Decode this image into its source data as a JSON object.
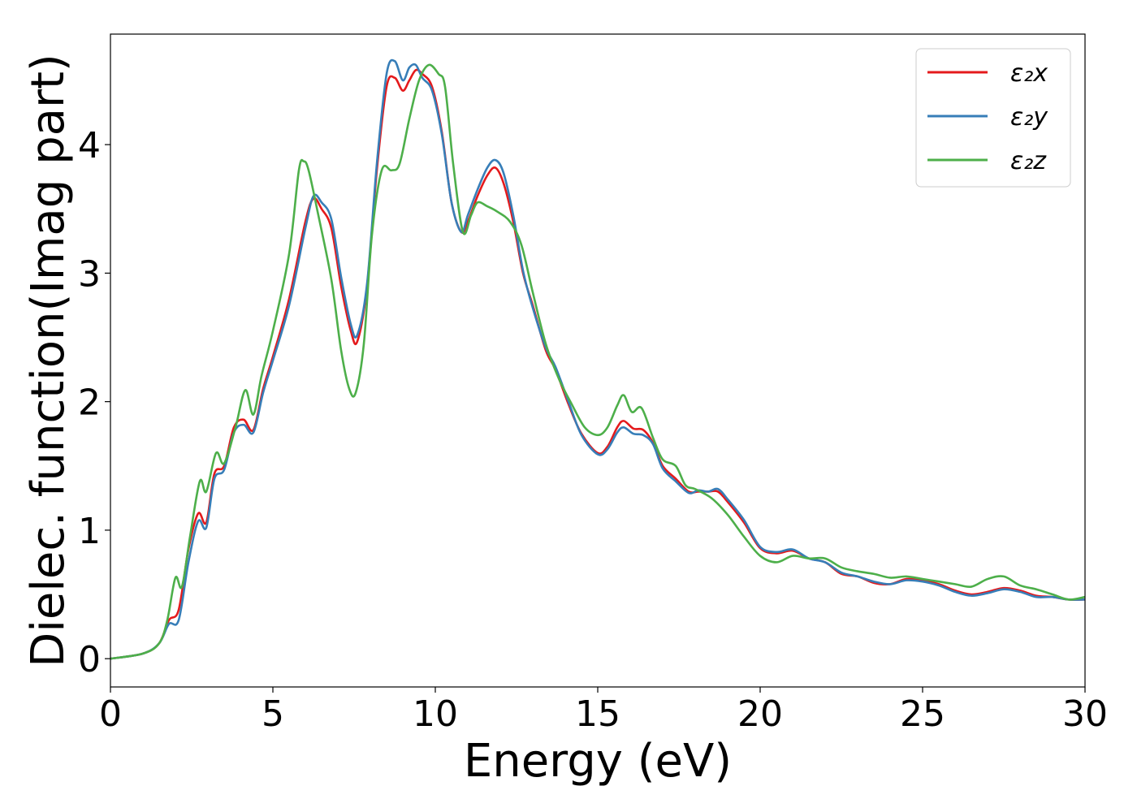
{
  "chart_data": {
    "type": "line",
    "xlabel": "Energy (eV)",
    "ylabel": "Dielec. function(Imag part)",
    "xlim": [
      0,
      30
    ],
    "ylim": [
      -0.22,
      4.86
    ],
    "xticks": [
      0,
      5,
      10,
      15,
      20,
      25,
      30
    ],
    "yticks": [
      0,
      1,
      2,
      3,
      4
    ],
    "grid": false,
    "legend_position": "top-right",
    "series": [
      {
        "name": "ε₂x",
        "color": "#e41a1c",
        "x": [
          0,
          1,
          1.5,
          1.8,
          2.1,
          2.4,
          2.7,
          2.95,
          3.2,
          3.5,
          3.8,
          4.1,
          4.4,
          4.7,
          5.0,
          5.5,
          6.0,
          6.25,
          6.5,
          6.8,
          7.1,
          7.4,
          7.6,
          7.9,
          8.2,
          8.5,
          8.75,
          9.0,
          9.2,
          9.4,
          9.6,
          9.9,
          10.2,
          10.5,
          10.8,
          11.0,
          11.3,
          11.6,
          11.85,
          12.1,
          12.4,
          12.7,
          13.0,
          13.4,
          13.7,
          14.1,
          14.5,
          15.0,
          15.3,
          15.6,
          15.8,
          16.1,
          16.4,
          16.7,
          17.0,
          17.4,
          17.8,
          18.1,
          18.4,
          18.7,
          19.0,
          19.5,
          20.0,
          20.5,
          21.0,
          21.5,
          22.0,
          22.5,
          23.0,
          23.5,
          24.0,
          24.5,
          25.0,
          25.5,
          26.0,
          26.5,
          27.0,
          27.5,
          28.0,
          28.5,
          29.0,
          29.5,
          30.0
        ],
        "values": [
          0,
          0.04,
          0.12,
          0.3,
          0.38,
          0.85,
          1.13,
          1.06,
          1.44,
          1.5,
          1.8,
          1.86,
          1.78,
          2.1,
          2.35,
          2.8,
          3.4,
          3.58,
          3.5,
          3.35,
          2.9,
          2.55,
          2.47,
          2.9,
          3.8,
          4.45,
          4.52,
          4.42,
          4.5,
          4.58,
          4.55,
          4.45,
          4.1,
          3.55,
          3.32,
          3.4,
          3.6,
          3.76,
          3.82,
          3.7,
          3.4,
          3.0,
          2.75,
          2.4,
          2.25,
          1.98,
          1.75,
          1.6,
          1.65,
          1.8,
          1.85,
          1.79,
          1.78,
          1.68,
          1.5,
          1.4,
          1.3,
          1.3,
          1.3,
          1.3,
          1.22,
          1.06,
          0.86,
          0.82,
          0.84,
          0.78,
          0.75,
          0.66,
          0.64,
          0.59,
          0.58,
          0.62,
          0.61,
          0.58,
          0.53,
          0.5,
          0.52,
          0.55,
          0.53,
          0.49,
          0.48,
          0.46,
          0.46
        ]
      },
      {
        "name": "ε₂y",
        "color": "#377eb8",
        "x": [
          0,
          1,
          1.5,
          1.8,
          2.1,
          2.4,
          2.7,
          2.95,
          3.2,
          3.5,
          3.8,
          4.1,
          4.4,
          4.7,
          5.0,
          5.5,
          6.0,
          6.25,
          6.5,
          6.8,
          7.1,
          7.4,
          7.6,
          7.9,
          8.2,
          8.5,
          8.75,
          9.0,
          9.2,
          9.4,
          9.6,
          9.9,
          10.2,
          10.5,
          10.8,
          11.0,
          11.3,
          11.6,
          11.85,
          12.1,
          12.4,
          12.7,
          13.0,
          13.4,
          13.7,
          14.1,
          14.5,
          15.0,
          15.3,
          15.6,
          15.8,
          16.1,
          16.4,
          16.7,
          17.0,
          17.4,
          17.8,
          18.1,
          18.4,
          18.7,
          19.0,
          19.5,
          20.0,
          20.5,
          21.0,
          21.5,
          22.0,
          22.5,
          23.0,
          23.5,
          24.0,
          24.5,
          25.0,
          25.5,
          26.0,
          26.5,
          27.0,
          27.5,
          28.0,
          28.5,
          29.0,
          29.5,
          30.0
        ],
        "values": [
          0,
          0.04,
          0.12,
          0.27,
          0.3,
          0.75,
          1.07,
          1.02,
          1.4,
          1.47,
          1.76,
          1.82,
          1.76,
          2.07,
          2.32,
          2.75,
          3.35,
          3.6,
          3.55,
          3.42,
          2.97,
          2.6,
          2.52,
          2.92,
          3.85,
          4.55,
          4.65,
          4.5,
          4.6,
          4.62,
          4.52,
          4.42,
          4.08,
          3.55,
          3.32,
          3.45,
          3.65,
          3.82,
          3.88,
          3.78,
          3.45,
          3.02,
          2.73,
          2.42,
          2.27,
          2.0,
          1.74,
          1.59,
          1.63,
          1.76,
          1.8,
          1.75,
          1.74,
          1.67,
          1.48,
          1.38,
          1.29,
          1.31,
          1.3,
          1.32,
          1.24,
          1.08,
          0.87,
          0.83,
          0.85,
          0.78,
          0.75,
          0.67,
          0.64,
          0.6,
          0.58,
          0.61,
          0.6,
          0.57,
          0.52,
          0.49,
          0.51,
          0.54,
          0.52,
          0.48,
          0.48,
          0.46,
          0.46
        ]
      },
      {
        "name": "ε₂z",
        "color": "#4daf4a",
        "x": [
          0,
          1,
          1.5,
          1.75,
          2.0,
          2.2,
          2.45,
          2.75,
          2.95,
          3.25,
          3.5,
          3.85,
          4.15,
          4.4,
          4.65,
          5.0,
          5.5,
          5.8,
          5.95,
          6.1,
          6.4,
          6.8,
          7.1,
          7.35,
          7.55,
          7.8,
          8.05,
          8.35,
          8.65,
          8.9,
          9.2,
          9.5,
          9.8,
          10.1,
          10.3,
          10.55,
          10.85,
          11.1,
          11.3,
          11.6,
          11.9,
          12.3,
          12.65,
          13.0,
          13.4,
          13.8,
          14.2,
          14.6,
          15.0,
          15.3,
          15.6,
          15.8,
          16.05,
          16.35,
          16.7,
          17.0,
          17.4,
          17.7,
          18.0,
          18.5,
          19.0,
          19.5,
          20.0,
          20.5,
          21.0,
          21.5,
          22.0,
          22.5,
          23.0,
          23.5,
          24.0,
          24.5,
          25.0,
          25.5,
          26.0,
          26.5,
          27.0,
          27.5,
          28.0,
          28.5,
          29.0,
          29.5,
          30.0
        ],
        "values": [
          0,
          0.04,
          0.12,
          0.3,
          0.63,
          0.56,
          0.95,
          1.38,
          1.3,
          1.6,
          1.52,
          1.8,
          2.09,
          1.9,
          2.2,
          2.55,
          3.15,
          3.8,
          3.87,
          3.8,
          3.45,
          2.95,
          2.4,
          2.1,
          2.07,
          2.45,
          3.3,
          3.8,
          3.8,
          3.85,
          4.2,
          4.5,
          4.62,
          4.55,
          4.45,
          3.85,
          3.32,
          3.45,
          3.55,
          3.52,
          3.48,
          3.4,
          3.22,
          2.85,
          2.45,
          2.18,
          1.98,
          1.8,
          1.74,
          1.8,
          1.97,
          2.05,
          1.92,
          1.95,
          1.72,
          1.55,
          1.5,
          1.35,
          1.32,
          1.25,
          1.12,
          0.95,
          0.8,
          0.75,
          0.8,
          0.78,
          0.78,
          0.71,
          0.68,
          0.66,
          0.63,
          0.64,
          0.62,
          0.6,
          0.58,
          0.56,
          0.62,
          0.64,
          0.57,
          0.54,
          0.5,
          0.46,
          0.48
        ]
      }
    ]
  }
}
